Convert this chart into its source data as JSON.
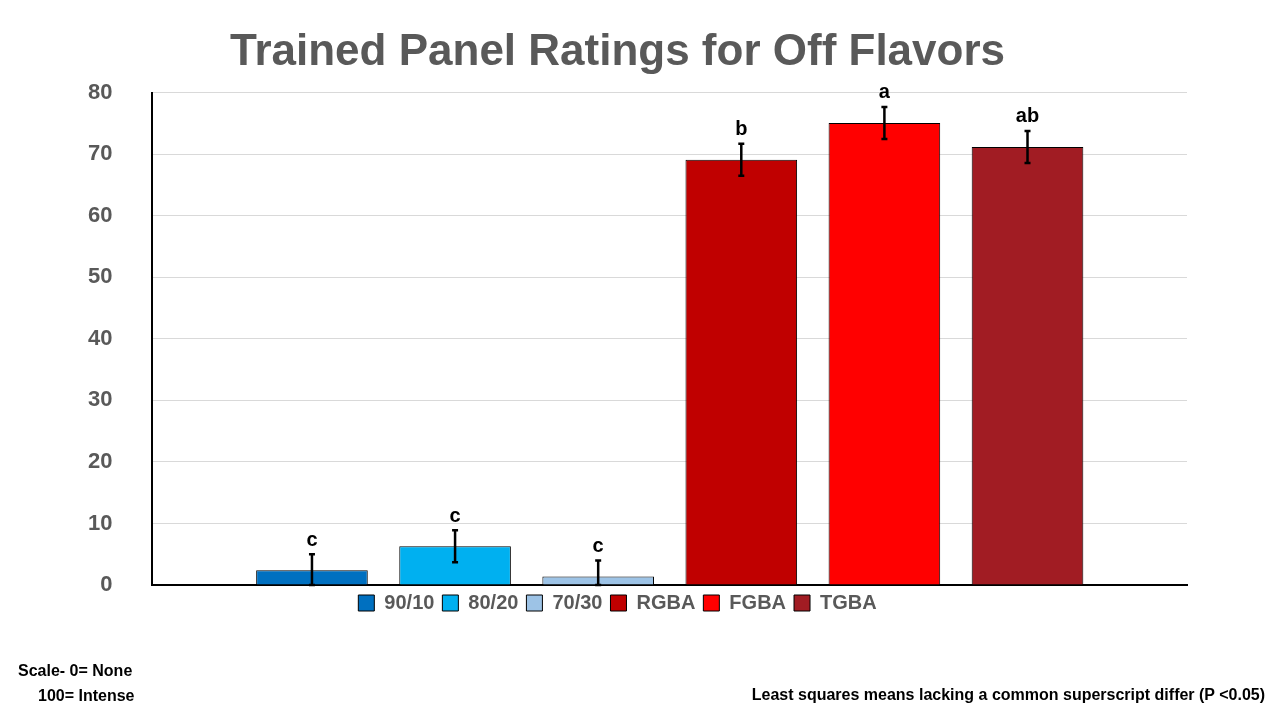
{
  "chart_data": {
    "type": "bar",
    "title": "Trained Panel Ratings for Off Flavors",
    "categories": [
      null
    ],
    "series": [
      {
        "name": "90/10",
        "color": "#0070c0",
        "values": [
          2.4
        ],
        "errors": [
          [
            0,
            5
          ]
        ],
        "value_labels": [
          "c"
        ]
      },
      {
        "name": "80/20",
        "color": "#00b0f0",
        "values": [
          6.3
        ],
        "errors": [
          2.6
        ],
        "value_labels": [
          "c"
        ]
      },
      {
        "name": "70/30",
        "color": "#9dc3e6",
        "values": [
          1.4
        ],
        "errors": [
          [
            0,
            4
          ]
        ],
        "value_labels": [
          "c"
        ]
      },
      {
        "name": "RGBA",
        "color": "#c00000",
        "values": [
          69.1
        ],
        "errors": [
          2.6
        ],
        "value_labels": [
          "b"
        ]
      },
      {
        "name": "FGBA",
        "color": "#ff0000",
        "values": [
          75.1
        ],
        "errors": [
          2.6
        ],
        "value_labels": [
          "a"
        ]
      },
      {
        "name": "TGBA",
        "color": "#a11c23",
        "values": [
          71.2
        ],
        "errors": [
          2.6
        ],
        "value_labels": [
          "ab"
        ]
      }
    ],
    "ylim": [
      0,
      80
    ],
    "yticks": [
      0,
      10,
      20,
      30,
      40,
      50,
      60,
      70,
      80
    ],
    "grid": "y",
    "legend": "bottom",
    "tick_labels": "y",
    "annotations": [
      "Scale- 0= None\n100= Intense",
      "Least squares means lacking a common superscript differ (P <0.05)"
    ]
  }
}
